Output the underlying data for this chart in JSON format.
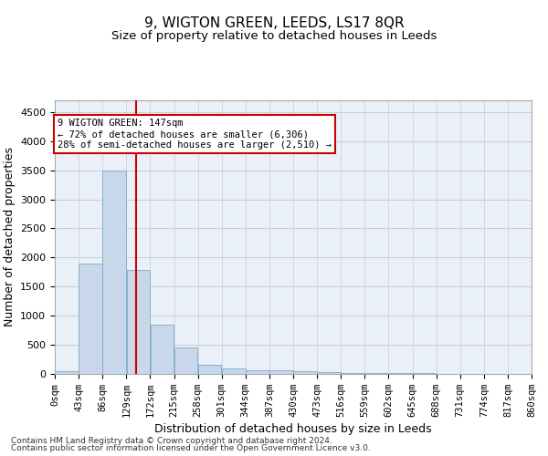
{
  "title": "9, WIGTON GREEN, LEEDS, LS17 8QR",
  "subtitle": "Size of property relative to detached houses in Leeds",
  "xlabel": "Distribution of detached houses by size in Leeds",
  "ylabel": "Number of detached properties",
  "bar_color": "#c8d8ea",
  "bar_edge_color": "#7aaac8",
  "grid_color": "#cccccc",
  "bg_color": "#eaf0f8",
  "annotation_box_color": "#cc0000",
  "vline_color": "#cc0000",
  "annotation_text_line1": "9 WIGTON GREEN: 147sqm",
  "annotation_text_line2": "← 72% of detached houses are smaller (6,306)",
  "annotation_text_line3": "28% of semi-detached houses are larger (2,510) →",
  "property_size": 147,
  "footer_line1": "Contains HM Land Registry data © Crown copyright and database right 2024.",
  "footer_line2": "Contains public sector information licensed under the Open Government Licence v3.0.",
  "bin_edges": [
    0,
    43,
    86,
    129,
    172,
    215,
    258,
    301,
    344,
    387,
    430,
    473,
    516,
    559,
    602,
    645,
    688,
    731,
    774,
    817,
    860
  ],
  "bar_heights": [
    50,
    1900,
    3500,
    1780,
    850,
    460,
    160,
    100,
    70,
    55,
    40,
    30,
    20,
    15,
    10,
    8,
    5,
    4,
    3,
    2
  ],
  "ylim": [
    0,
    4700
  ],
  "yticks": [
    0,
    500,
    1000,
    1500,
    2000,
    2500,
    3000,
    3500,
    4000,
    4500
  ],
  "title_fontsize": 11,
  "subtitle_fontsize": 9.5,
  "axis_label_fontsize": 9,
  "tick_fontsize": 7.5,
  "footer_fontsize": 6.5,
  "annot_fontsize": 7.5
}
